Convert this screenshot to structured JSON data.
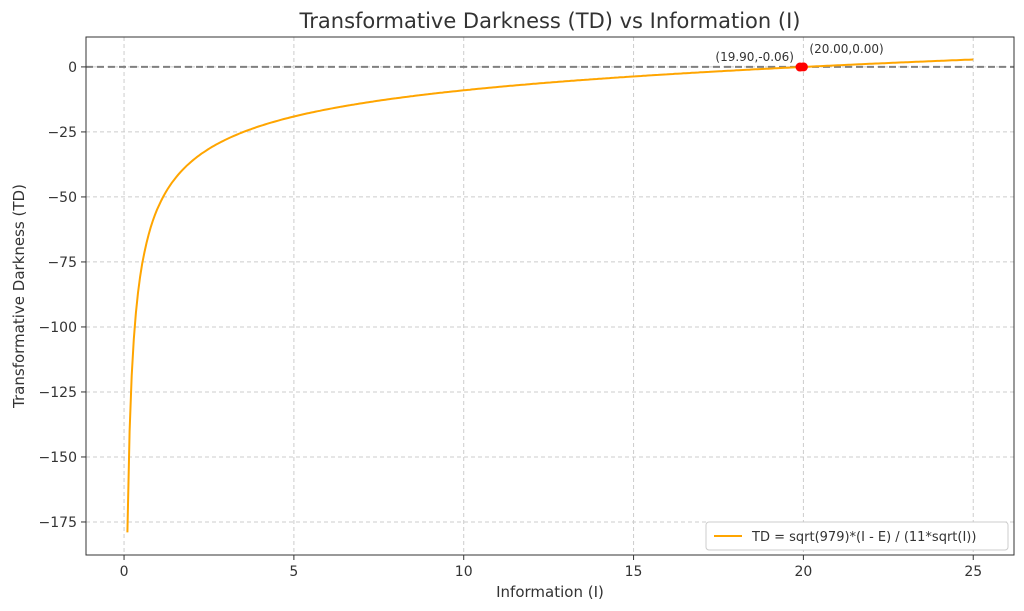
{
  "chart_data": {
    "type": "line",
    "title": "Transformative Darkness (TD) vs Information (I)",
    "xlabel": "Information (I)",
    "ylabel": "Transformative Darkness (TD)",
    "xlim": [
      -1.12,
      26.2
    ],
    "ylim": [
      -187.7,
      11.5
    ],
    "xticks": [
      0,
      5,
      10,
      15,
      20,
      25
    ],
    "yticks": [
      0,
      -25,
      -50,
      -75,
      -100,
      -125,
      -150,
      -175
    ],
    "ytick_labels": [
      "0",
      "−25",
      "−50",
      "−75",
      "−100",
      "−125",
      "−150",
      "−175"
    ],
    "grid": true,
    "legend_position": "bottom-right",
    "series": [
      {
        "name": "TD = sqrt(979)*(I - E) / (11*sqrt(I))",
        "color": "#FFA500",
        "E": 20,
        "x_range": [
          0.1,
          25
        ],
        "samples": 400
      }
    ],
    "reference_line": {
      "y": 0,
      "color": "#808080",
      "style": "dashed"
    },
    "points": [
      {
        "x": 19.9,
        "y": -0.06,
        "label": "(19.90,-0.06)",
        "color": "#FF0000"
      },
      {
        "x": 20.0,
        "y": 0.0,
        "label": "(20.00,0.00)",
        "color": "#FF0000"
      }
    ]
  }
}
